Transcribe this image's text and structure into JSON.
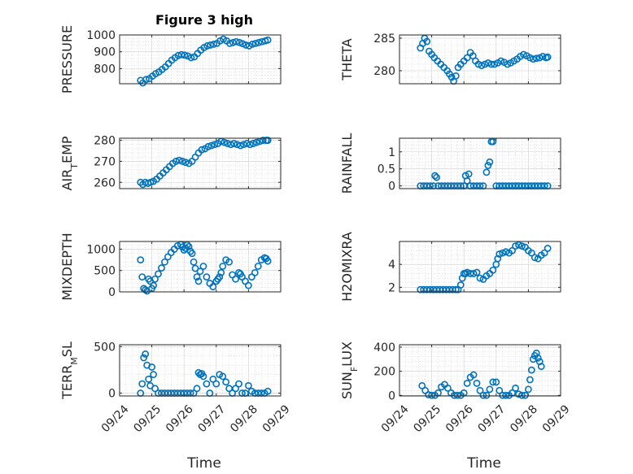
{
  "figure": {
    "title": "Figure 3 high",
    "marker_color": "#0072BD"
  },
  "chart_data": [
    {
      "type": "scatter",
      "id": "pressure",
      "ylabel": "PRESSURE",
      "title": "Figure 3 high",
      "xlabel": "",
      "xlim": [
        0,
        5
      ],
      "ylim": [
        710,
        1000
      ],
      "xticks": [
        0,
        1,
        2,
        3,
        4,
        5
      ],
      "xticklabels": [
        "09/24",
        "09/25",
        "09/26",
        "09/27",
        "09/28",
        "09/29"
      ],
      "show_xticklabels": false,
      "yticks": [
        800,
        900,
        1000
      ],
      "yticklabels": [
        "800",
        "900",
        "1000"
      ],
      "x": [
        0.65,
        0.72,
        0.82,
        0.92,
        1.02,
        1.12,
        1.22,
        1.32,
        1.42,
        1.52,
        1.62,
        1.72,
        1.82,
        1.92,
        2.02,
        2.12,
        2.22,
        2.32,
        2.42,
        2.52,
        2.62,
        2.72,
        2.82,
        2.92,
        3.02,
        3.12,
        3.22,
        3.32,
        3.42,
        3.52,
        3.62,
        3.72,
        3.82,
        3.92,
        4.02,
        4.12,
        4.22,
        4.32,
        4.42,
        4.52,
        4.6
      ],
      "y": [
        730,
        715,
        735,
        740,
        755,
        770,
        780,
        795,
        810,
        830,
        850,
        865,
        878,
        883,
        880,
        875,
        865,
        870,
        890,
        910,
        925,
        935,
        940,
        945,
        950,
        965,
        975,
        965,
        950,
        955,
        960,
        955,
        948,
        940,
        935,
        945,
        950,
        955,
        960,
        965,
        970
      ]
    },
    {
      "type": "scatter",
      "id": "theta",
      "ylabel": "THETA",
      "xlim": [
        0,
        5
      ],
      "ylim": [
        278,
        285.5
      ],
      "xticks": [
        0,
        1,
        2,
        3,
        4,
        5
      ],
      "xticklabels": [
        "09/24",
        "09/25",
        "09/26",
        "09/27",
        "09/28",
        "09/29"
      ],
      "show_xticklabels": false,
      "yticks": [
        280,
        285
      ],
      "yticklabels": [
        "280",
        "285"
      ],
      "x": [
        0.65,
        0.72,
        0.78,
        0.85,
        0.92,
        1.0,
        1.08,
        1.18,
        1.28,
        1.38,
        1.48,
        1.55,
        1.62,
        1.68,
        1.75,
        1.82,
        1.9,
        2.0,
        2.1,
        2.2,
        2.28,
        2.36,
        2.45,
        2.55,
        2.65,
        2.75,
        2.85,
        2.95,
        3.05,
        3.15,
        3.25,
        3.35,
        3.45,
        3.55,
        3.65,
        3.75,
        3.85,
        3.95,
        4.05,
        4.15,
        4.25,
        4.35,
        4.45,
        4.55,
        4.6
      ],
      "y": [
        283.5,
        284.2,
        285.0,
        284.5,
        283.0,
        282.5,
        282.0,
        281.5,
        281.0,
        280.5,
        280.0,
        279.5,
        279.0,
        278.4,
        279.2,
        280.5,
        281.0,
        281.5,
        282.0,
        282.8,
        282.3,
        281.5,
        281.0,
        280.8,
        281.0,
        281.2,
        281.0,
        281.0,
        281.2,
        281.5,
        281.3,
        281.0,
        281.2,
        281.5,
        281.8,
        282.2,
        282.5,
        282.3,
        282.0,
        281.8,
        281.9,
        282.0,
        282.2,
        282.0,
        282.1
      ]
    },
    {
      "type": "scatter",
      "id": "air_temp",
      "ylabel": "AIR_TEMP",
      "ylabel_main": "AIR",
      "ylabel_sub": "T",
      "ylabel_rest": "EMP",
      "xlim": [
        0,
        5
      ],
      "ylim": [
        257,
        281
      ],
      "xticks": [
        0,
        1,
        2,
        3,
        4,
        5
      ],
      "xticklabels": [
        "09/24",
        "09/25",
        "09/26",
        "09/27",
        "09/28",
        "09/29"
      ],
      "show_xticklabels": false,
      "yticks": [
        260,
        270,
        280
      ],
      "yticklabels": [
        "260",
        "270",
        "280"
      ],
      "x": [
        0.65,
        0.72,
        0.8,
        0.88,
        0.96,
        1.05,
        1.15,
        1.25,
        1.35,
        1.45,
        1.55,
        1.65,
        1.75,
        1.85,
        1.95,
        2.05,
        2.15,
        2.25,
        2.35,
        2.45,
        2.55,
        2.65,
        2.75,
        2.85,
        2.95,
        3.05,
        3.15,
        3.25,
        3.35,
        3.45,
        3.55,
        3.65,
        3.75,
        3.85,
        3.95,
        4.05,
        4.15,
        4.25,
        4.35,
        4.45,
        4.55,
        4.6
      ],
      "y": [
        260.0,
        259.0,
        260.0,
        259.5,
        260.0,
        260.5,
        261.5,
        263.0,
        264.5,
        266.0,
        267.5,
        269.0,
        270.0,
        270.5,
        270.0,
        269.5,
        269.0,
        270.0,
        272.0,
        274.0,
        275.5,
        276.0,
        277.0,
        277.5,
        278.0,
        278.5,
        279.5,
        279.0,
        278.5,
        278.0,
        278.5,
        278.0,
        277.5,
        278.0,
        278.5,
        278.0,
        278.5,
        279.0,
        279.5,
        280.0,
        280.0,
        280.0
      ]
    },
    {
      "type": "scatter",
      "id": "rainfall",
      "ylabel": "RAINFALL",
      "xlim": [
        0,
        5
      ],
      "ylim": [
        -0.08,
        1.4
      ],
      "xticks": [
        0,
        1,
        2,
        3,
        4,
        5
      ],
      "xticklabels": [
        "09/24",
        "09/25",
        "09/26",
        "09/27",
        "09/28",
        "09/29"
      ],
      "show_xticklabels": false,
      "yticks": [
        0,
        0.5,
        1
      ],
      "yticklabels": [
        "0",
        "0.5",
        "1"
      ],
      "x": [
        0.65,
        0.75,
        0.85,
        0.95,
        1.05,
        1.1,
        1.15,
        1.2,
        1.3,
        1.4,
        1.5,
        1.6,
        1.7,
        1.8,
        1.9,
        2.0,
        2.05,
        2.1,
        2.15,
        2.2,
        2.3,
        2.4,
        2.5,
        2.6,
        2.7,
        2.75,
        2.8,
        2.85,
        2.9,
        3.0,
        3.1,
        3.2,
        3.3,
        3.4,
        3.5,
        3.6,
        3.7,
        3.8,
        3.9,
        4.0,
        4.1,
        4.2,
        4.3,
        4.4,
        4.5,
        4.6
      ],
      "y": [
        0,
        0,
        0,
        0,
        0,
        0.3,
        0.25,
        0,
        0,
        0,
        0,
        0,
        0,
        0,
        0,
        0,
        0.3,
        0.15,
        0.35,
        0,
        0,
        0,
        0,
        0,
        0.4,
        0.6,
        0.7,
        1.3,
        1.3,
        0,
        0,
        0,
        0,
        0,
        0,
        0,
        0,
        0,
        0,
        0,
        0,
        0,
        0,
        0,
        0,
        0
      ]
    },
    {
      "type": "scatter",
      "id": "mixdepth",
      "ylabel": "MIXDEPTH",
      "xlim": [
        0,
        5
      ],
      "ylim": [
        0,
        1180
      ],
      "xticks": [
        0,
        1,
        2,
        3,
        4,
        5
      ],
      "xticklabels": [
        "09/24",
        "09/25",
        "09/26",
        "09/27",
        "09/28",
        "09/29"
      ],
      "show_xticklabels": false,
      "yticks": [
        0,
        500,
        1000
      ],
      "yticklabels": [
        "0",
        "500",
        "1000"
      ],
      "x": [
        0.65,
        0.7,
        0.75,
        0.8,
        0.85,
        0.9,
        0.95,
        1.0,
        1.05,
        1.1,
        1.2,
        1.3,
        1.4,
        1.5,
        1.6,
        1.7,
        1.8,
        1.9,
        1.95,
        2.0,
        2.05,
        2.1,
        2.15,
        2.2,
        2.25,
        2.3,
        2.35,
        2.4,
        2.45,
        2.5,
        2.6,
        2.7,
        2.8,
        2.9,
        3.0,
        3.05,
        3.1,
        3.15,
        3.2,
        3.3,
        3.4,
        3.5,
        3.6,
        3.7,
        3.75,
        3.8,
        3.9,
        4.0,
        4.1,
        4.2,
        4.3,
        4.4,
        4.5,
        4.55,
        4.6
      ],
      "y": [
        750,
        350,
        80,
        50,
        20,
        300,
        250,
        80,
        150,
        300,
        420,
        560,
        700,
        820,
        920,
        1000,
        1080,
        1110,
        1050,
        980,
        1020,
        1100,
        1060,
        950,
        900,
        700,
        550,
        350,
        250,
        480,
        600,
        350,
        200,
        120,
        250,
        300,
        350,
        450,
        600,
        750,
        700,
        400,
        300,
        450,
        420,
        350,
        250,
        150,
        350,
        450,
        600,
        750,
        800,
        780,
        720
      ]
    },
    {
      "type": "scatter",
      "id": "h2omixra",
      "ylabel": "H2OMIXRA",
      "xlim": [
        0,
        5
      ],
      "ylim": [
        1.6,
        6.0
      ],
      "xticks": [
        0,
        1,
        2,
        3,
        4,
        5
      ],
      "xticklabels": [
        "09/24",
        "09/25",
        "09/26",
        "09/27",
        "09/28",
        "09/29"
      ],
      "show_xticklabels": false,
      "yticks": [
        2,
        4
      ],
      "yticklabels": [
        "2",
        "4"
      ],
      "x": [
        0.65,
        0.75,
        0.85,
        0.95,
        1.05,
        1.15,
        1.25,
        1.35,
        1.45,
        1.55,
        1.65,
        1.75,
        1.82,
        1.9,
        1.95,
        2.0,
        2.05,
        2.1,
        2.2,
        2.3,
        2.4,
        2.5,
        2.6,
        2.7,
        2.8,
        2.9,
        3.0,
        3.05,
        3.1,
        3.2,
        3.3,
        3.4,
        3.5,
        3.6,
        3.7,
        3.8,
        3.9,
        4.0,
        4.1,
        4.2,
        4.3,
        4.4,
        4.5,
        4.6
      ],
      "y": [
        1.8,
        1.8,
        1.8,
        1.8,
        1.8,
        1.8,
        1.8,
        1.8,
        1.8,
        1.8,
        1.8,
        1.8,
        1.8,
        2.2,
        2.8,
        3.2,
        3.2,
        3.3,
        3.2,
        3.2,
        3.3,
        2.8,
        2.7,
        3.0,
        3.2,
        3.5,
        4.0,
        4.5,
        4.9,
        5.0,
        5.1,
        5.0,
        5.2,
        5.6,
        5.7,
        5.6,
        5.5,
        5.2,
        5.0,
        4.6,
        4.5,
        4.8,
        5.0,
        5.4
      ]
    },
    {
      "type": "scatter",
      "id": "terr_msl",
      "ylabel": "TERR_MSL",
      "ylabel_main": "TERR",
      "ylabel_sub": "M",
      "ylabel_rest": "SL",
      "xlabel": "Time",
      "xlim": [
        0,
        5
      ],
      "ylim": [
        -30,
        520
      ],
      "xticks": [
        0,
        1,
        2,
        3,
        4,
        5
      ],
      "xticklabels": [
        "09/24",
        "09/25",
        "09/26",
        "09/27",
        "09/28",
        "09/29"
      ],
      "show_xticklabels": true,
      "yticks": [
        0,
        500
      ],
      "yticklabels": [
        "0",
        "500"
      ],
      "x": [
        0.65,
        0.7,
        0.75,
        0.8,
        0.85,
        0.9,
        0.95,
        1.0,
        1.05,
        1.1,
        1.2,
        1.3,
        1.4,
        1.5,
        1.6,
        1.7,
        1.8,
        1.9,
        2.0,
        2.1,
        2.2,
        2.3,
        2.4,
        2.45,
        2.5,
        2.55,
        2.6,
        2.7,
        2.8,
        2.9,
        3.0,
        3.1,
        3.2,
        3.3,
        3.4,
        3.5,
        3.6,
        3.7,
        3.8,
        3.9,
        4.0,
        4.1,
        4.2,
        4.3,
        4.4,
        4.5,
        4.6
      ],
      "y": [
        0,
        100,
        380,
        420,
        300,
        150,
        80,
        280,
        200,
        50,
        0,
        0,
        0,
        0,
        0,
        0,
        0,
        0,
        0,
        0,
        0,
        0,
        50,
        220,
        200,
        210,
        180,
        100,
        0,
        150,
        100,
        200,
        180,
        120,
        50,
        0,
        50,
        100,
        0,
        0,
        80,
        20,
        0,
        0,
        0,
        0,
        20
      ]
    },
    {
      "type": "scatter",
      "id": "sun_flux",
      "ylabel": "SUN_FLUX",
      "ylabel_main": "SUN",
      "ylabel_sub": "F",
      "ylabel_rest": "LUX",
      "xlabel": "Time",
      "xlim": [
        0,
        5
      ],
      "ylim": [
        -5,
        420
      ],
      "xticks": [
        0,
        1,
        2,
        3,
        4,
        5
      ],
      "xticklabels": [
        "09/24",
        "09/25",
        "09/26",
        "09/27",
        "09/28",
        "09/29"
      ],
      "show_xticklabels": true,
      "yticks": [
        0,
        200,
        400
      ],
      "yticklabels": [
        "0",
        "200",
        "400"
      ],
      "x": [
        0.7,
        0.8,
        0.9,
        1.0,
        1.1,
        1.2,
        1.3,
        1.4,
        1.5,
        1.6,
        1.7,
        1.8,
        1.9,
        2.0,
        2.1,
        2.2,
        2.3,
        2.4,
        2.5,
        2.6,
        2.7,
        2.8,
        2.9,
        3.0,
        3.1,
        3.2,
        3.3,
        3.4,
        3.5,
        3.6,
        3.7,
        3.8,
        3.9,
        4.0,
        4.05,
        4.1,
        4.15,
        4.2,
        4.25,
        4.3,
        4.35,
        4.4
      ],
      "y": [
        80,
        40,
        5,
        0,
        0,
        20,
        70,
        90,
        60,
        20,
        0,
        0,
        0,
        20,
        100,
        150,
        170,
        100,
        40,
        0,
        0,
        50,
        110,
        110,
        40,
        0,
        0,
        0,
        20,
        60,
        10,
        0,
        0,
        50,
        130,
        210,
        300,
        330,
        350,
        310,
        280,
        240
      ]
    }
  ]
}
